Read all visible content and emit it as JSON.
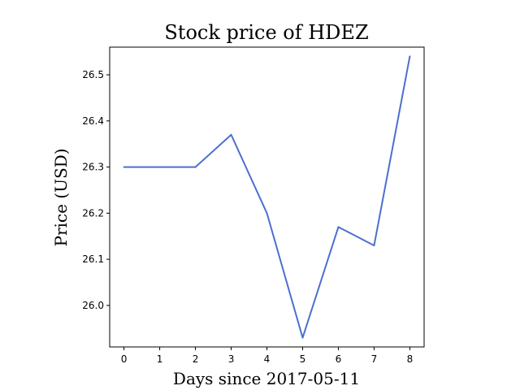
{
  "chart_data": {
    "type": "line",
    "title": "Stock price of HDEZ",
    "xlabel": "Days since 2017-05-11",
    "ylabel": "Price (USD)",
    "x": [
      0,
      1,
      2,
      3,
      4,
      5,
      6,
      7,
      8
    ],
    "series": [
      {
        "values": [
          26.3,
          26.3,
          26.3,
          26.37,
          26.2,
          25.93,
          26.17,
          26.13,
          26.54
        ],
        "color": "#4c6fcf"
      }
    ],
    "x_ticks": [
      0,
      1,
      2,
      3,
      4,
      5,
      6,
      7,
      8
    ],
    "y_ticks": [
      26.0,
      26.1,
      26.2,
      26.3,
      26.4,
      26.5
    ],
    "xlim": [
      -0.4,
      8.4
    ],
    "ylim": [
      25.91,
      26.56
    ],
    "grid": false
  }
}
